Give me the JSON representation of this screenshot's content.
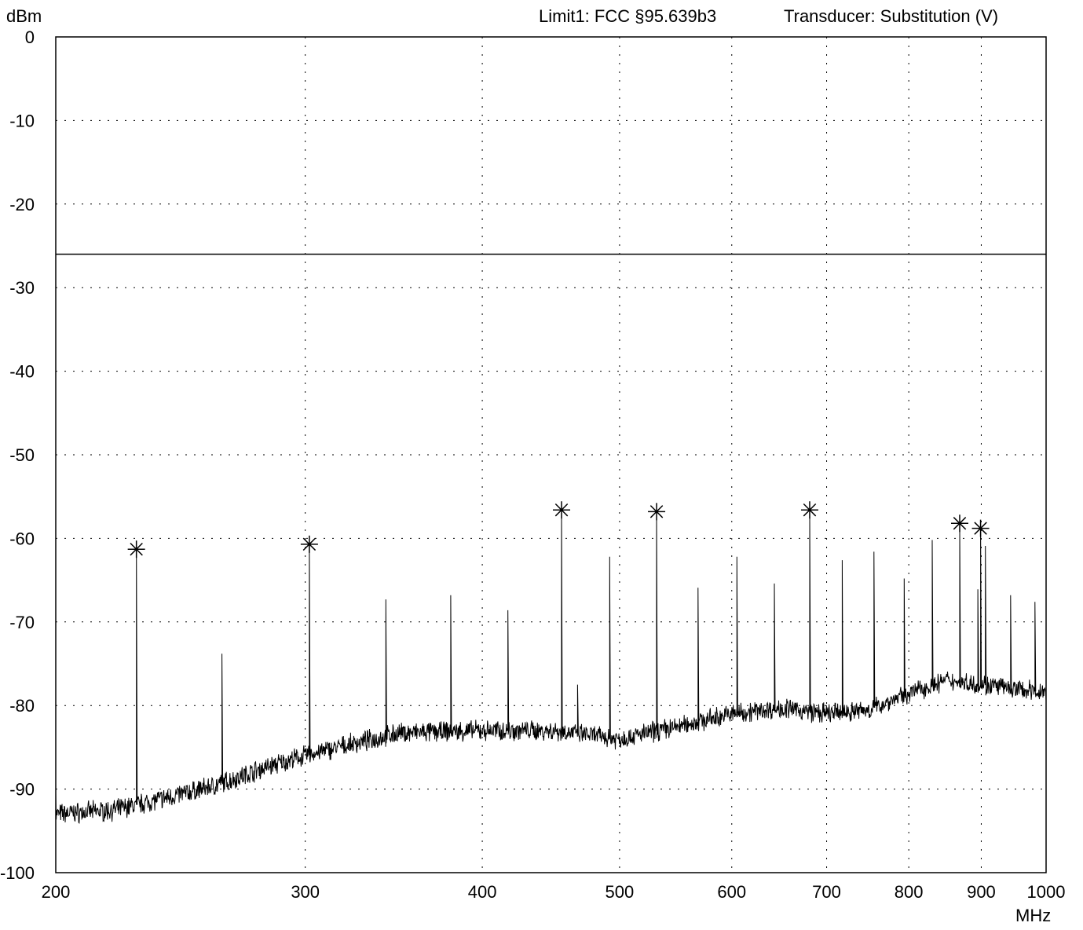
{
  "header": {
    "limit_label": "Limit1: FCC §95.639b3",
    "transducer_label": "Transducer: Substitution (V)"
  },
  "chart_data": {
    "type": "line",
    "title": "",
    "ylabel": "dBm",
    "xlabel": "MHz",
    "x_scale": "log",
    "xlim": [
      200,
      1000
    ],
    "ylim": [
      -100,
      0
    ],
    "x_ticks": [
      200,
      300,
      400,
      500,
      600,
      700,
      800,
      900,
      1000
    ],
    "y_ticks": [
      0,
      -10,
      -20,
      -30,
      -40,
      -50,
      -60,
      -70,
      -80,
      -90,
      -100
    ],
    "grid": true,
    "limit_line": {
      "name": "Limit1: FCC §95.639b3",
      "value": -26
    },
    "noise_floor": [
      {
        "x": 200,
        "y": -93
      },
      {
        "x": 220,
        "y": -92.5
      },
      {
        "x": 240,
        "y": -91
      },
      {
        "x": 260,
        "y": -89.5
      },
      {
        "x": 280,
        "y": -87.5
      },
      {
        "x": 300,
        "y": -86
      },
      {
        "x": 320,
        "y": -84.8
      },
      {
        "x": 350,
        "y": -83.3
      },
      {
        "x": 400,
        "y": -83
      },
      {
        "x": 450,
        "y": -83
      },
      {
        "x": 500,
        "y": -84
      },
      {
        "x": 550,
        "y": -82.5
      },
      {
        "x": 600,
        "y": -81
      },
      {
        "x": 650,
        "y": -80.3
      },
      {
        "x": 700,
        "y": -81
      },
      {
        "x": 750,
        "y": -80.5
      },
      {
        "x": 800,
        "y": -78.5
      },
      {
        "x": 850,
        "y": -77
      },
      {
        "x": 900,
        "y": -77.5
      },
      {
        "x": 950,
        "y": -78
      },
      {
        "x": 1000,
        "y": -78.5
      }
    ],
    "spurs": [
      {
        "x": 228,
        "y": -61.3
      },
      {
        "x": 262,
        "y": -73.8
      },
      {
        "x": 302,
        "y": -60.7
      },
      {
        "x": 342,
        "y": -67.3
      },
      {
        "x": 380,
        "y": -66.8
      },
      {
        "x": 417,
        "y": -68.6
      },
      {
        "x": 455,
        "y": -56.6
      },
      {
        "x": 467,
        "y": -77.5
      },
      {
        "x": 492,
        "y": -62.2
      },
      {
        "x": 531,
        "y": -56.8
      },
      {
        "x": 568,
        "y": -65.9
      },
      {
        "x": 605,
        "y": -62.2
      },
      {
        "x": 643,
        "y": -65.4
      },
      {
        "x": 681,
        "y": -56.6
      },
      {
        "x": 718,
        "y": -62.6
      },
      {
        "x": 756,
        "y": -61.6
      },
      {
        "x": 794,
        "y": -64.8
      },
      {
        "x": 831,
        "y": -60.2
      },
      {
        "x": 869,
        "y": -58.2
      },
      {
        "x": 895,
        "y": -66.1
      },
      {
        "x": 899,
        "y": -58.8
      },
      {
        "x": 906,
        "y": -60.9
      },
      {
        "x": 944,
        "y": -66.8
      },
      {
        "x": 982,
        "y": -67.6
      }
    ],
    "markers": [
      {
        "x": 228,
        "y": -61.3
      },
      {
        "x": 302,
        "y": -60.7
      },
      {
        "x": 455,
        "y": -56.6
      },
      {
        "x": 531,
        "y": -56.8
      },
      {
        "x": 681,
        "y": -56.6
      },
      {
        "x": 869,
        "y": -58.2
      },
      {
        "x": 899,
        "y": -58.8
      }
    ]
  }
}
